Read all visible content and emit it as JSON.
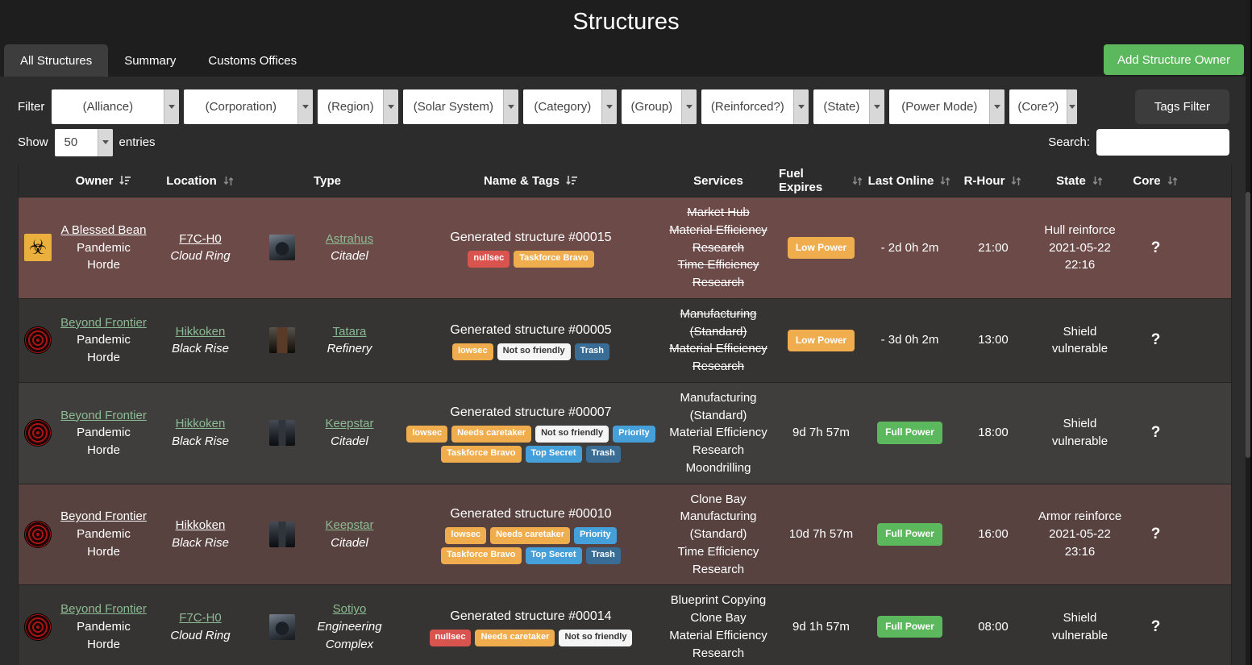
{
  "title": "Structures",
  "tabs": [
    {
      "label": "All Structures",
      "active": true
    },
    {
      "label": "Summary",
      "active": false
    },
    {
      "label": "Customs Offices",
      "active": false
    }
  ],
  "add_owner_button": "Add Structure Owner",
  "filters": {
    "label": "Filter",
    "selects": [
      {
        "id": "alliance",
        "value": "(Alliance)"
      },
      {
        "id": "corporation",
        "value": "(Corporation)"
      },
      {
        "id": "region",
        "value": "(Region)"
      },
      {
        "id": "solar-system",
        "value": "(Solar System)"
      },
      {
        "id": "category",
        "value": "(Category)"
      },
      {
        "id": "group",
        "value": "(Group)"
      },
      {
        "id": "reinforced",
        "value": "(Reinforced?)"
      },
      {
        "id": "state",
        "value": "(State)"
      },
      {
        "id": "power-mode",
        "value": "(Power Mode)"
      },
      {
        "id": "core",
        "value": "(Core?)"
      }
    ],
    "tags_filter_button": "Tags Filter"
  },
  "table_controls": {
    "show_label": "Show",
    "entries_value": "50",
    "entries_label": "entries",
    "search_label": "Search:",
    "search_value": ""
  },
  "table": {
    "columns": [
      {
        "label": "",
        "sort": null
      },
      {
        "label": "Owner",
        "sort": "amount"
      },
      {
        "label": "Location",
        "sort": "both"
      },
      {
        "label": "Type",
        "sort": null
      },
      {
        "label": "Name & Tags",
        "sort": "amount"
      },
      {
        "label": "Services",
        "sort": null
      },
      {
        "label": "Fuel Expires",
        "sort": "both"
      },
      {
        "label": "Last Online",
        "sort": "both"
      },
      {
        "label": "R-Hour",
        "sort": "both"
      },
      {
        "label": "State",
        "sort": "both"
      },
      {
        "label": "Core",
        "sort": "both"
      }
    ],
    "rows": [
      {
        "style": "reinforced-a",
        "owner_icon": "biohazard",
        "owner": {
          "name": "A Blessed Bean",
          "variant": "white",
          "sub": "Pandemic Horde"
        },
        "location": {
          "name": "F7C-H0",
          "variant": "white",
          "sub": "Cloud Ring"
        },
        "type": {
          "name": "Astrahus",
          "variant": "green",
          "sub": "Citadel",
          "thumb": "astrahus"
        },
        "structure_name": "Generated structure #00015",
        "tags": [
          {
            "label": "nullsec",
            "color": "red"
          },
          {
            "label": "Taskforce Bravo",
            "color": "orange"
          }
        ],
        "services": [
          {
            "name": "Market Hub",
            "offline": true
          },
          {
            "name": "Material Efficiency Research",
            "offline": true
          },
          {
            "name": "Time Efficiency Research",
            "offline": true
          }
        ],
        "fuel_expires": {
          "text": "",
          "badge": "Low Power",
          "badge_color": "orange"
        },
        "last_online": {
          "text": "- 2d 0h 2m",
          "badge": "",
          "badge_color": ""
        },
        "r_hour": "21:00",
        "state": "Hull reinforce 2021-05-22 22:16",
        "core": "?"
      },
      {
        "style": "base-a",
        "owner_icon": "beyond-frontier",
        "owner": {
          "name": "Beyond Frontier",
          "variant": "green",
          "sub": "Pandemic Horde"
        },
        "location": {
          "name": "Hikkoken",
          "variant": "green",
          "sub": "Black Rise"
        },
        "type": {
          "name": "Tatara",
          "variant": "green",
          "sub": "Refinery",
          "thumb": "tatara"
        },
        "structure_name": "Generated structure #00005",
        "tags": [
          {
            "label": "lowsec",
            "color": "orange"
          },
          {
            "label": "Not so friendly",
            "color": "light"
          },
          {
            "label": "Trash",
            "color": "darkblue"
          }
        ],
        "services": [
          {
            "name": "Manufacturing (Standard)",
            "offline": true
          },
          {
            "name": "Material Efficiency Research",
            "offline": true
          }
        ],
        "fuel_expires": {
          "text": "",
          "badge": "Low Power",
          "badge_color": "orange"
        },
        "last_online": {
          "text": "- 3d 0h 2m",
          "badge": "",
          "badge_color": ""
        },
        "r_hour": "13:00",
        "state": "Shield vulnerable",
        "core": "?"
      },
      {
        "style": "base-b",
        "owner_icon": "beyond-frontier",
        "owner": {
          "name": "Beyond Frontier",
          "variant": "green",
          "sub": "Pandemic Horde"
        },
        "location": {
          "name": "Hikkoken",
          "variant": "green",
          "sub": "Black Rise"
        },
        "type": {
          "name": "Keepstar",
          "variant": "green",
          "sub": "Citadel",
          "thumb": "keepstar"
        },
        "structure_name": "Generated structure #00007",
        "tags": [
          {
            "label": "lowsec",
            "color": "orange"
          },
          {
            "label": "Needs caretaker",
            "color": "orange"
          },
          {
            "label": "Not so friendly",
            "color": "light"
          },
          {
            "label": "Priority",
            "color": "blue"
          },
          {
            "label": "Taskforce Bravo",
            "color": "orange"
          },
          {
            "label": "Top Secret",
            "color": "blue"
          },
          {
            "label": "Trash",
            "color": "darkblue"
          }
        ],
        "services": [
          {
            "name": "Manufacturing (Standard)",
            "offline": false
          },
          {
            "name": "Material Efficiency Research",
            "offline": false
          },
          {
            "name": "Moondrilling",
            "offline": false
          }
        ],
        "fuel_expires": {
          "text": "9d 7h 57m",
          "badge": "",
          "badge_color": ""
        },
        "last_online": {
          "text": "",
          "badge": "Full Power",
          "badge_color": "green"
        },
        "r_hour": "18:00",
        "state": "Shield vulnerable",
        "core": "?"
      },
      {
        "style": "reinforced-b",
        "owner_icon": "beyond-frontier",
        "owner": {
          "name": "Beyond Frontier",
          "variant": "white",
          "sub": "Pandemic Horde"
        },
        "location": {
          "name": "Hikkoken",
          "variant": "white",
          "sub": "Black Rise"
        },
        "type": {
          "name": "Keepstar",
          "variant": "green",
          "sub": "Citadel",
          "thumb": "keepstar"
        },
        "structure_name": "Generated structure #00010",
        "tags": [
          {
            "label": "lowsec",
            "color": "orange"
          },
          {
            "label": "Needs caretaker",
            "color": "orange"
          },
          {
            "label": "Priority",
            "color": "blue"
          },
          {
            "label": "Taskforce Bravo",
            "color": "orange"
          },
          {
            "label": "Top Secret",
            "color": "blue"
          },
          {
            "label": "Trash",
            "color": "darkblue"
          }
        ],
        "services": [
          {
            "name": "Clone Bay",
            "offline": false
          },
          {
            "name": "Manufacturing (Standard)",
            "offline": false
          },
          {
            "name": "Time Efficiency Research",
            "offline": false
          }
        ],
        "fuel_expires": {
          "text": "10d 7h 57m",
          "badge": "",
          "badge_color": ""
        },
        "last_online": {
          "text": "",
          "badge": "Full Power",
          "badge_color": "green"
        },
        "r_hour": "16:00",
        "state": "Armor reinforce 2021-05-22 23:16",
        "core": "?"
      },
      {
        "style": "base-a",
        "owner_icon": "beyond-frontier",
        "owner": {
          "name": "Beyond Frontier",
          "variant": "green",
          "sub": "Pandemic Horde"
        },
        "location": {
          "name": "F7C-H0",
          "variant": "green",
          "sub": "Cloud Ring"
        },
        "type": {
          "name": "Sotiyo",
          "variant": "green",
          "sub": "Engineering Complex",
          "thumb": "sotiyo"
        },
        "structure_name": "Generated structure #00014",
        "tags": [
          {
            "label": "nullsec",
            "color": "red"
          },
          {
            "label": "Needs caretaker",
            "color": "orange"
          },
          {
            "label": "Not so friendly",
            "color": "light"
          }
        ],
        "services": [
          {
            "name": "Blueprint Copying",
            "offline": false
          },
          {
            "name": "Clone Bay",
            "offline": false
          },
          {
            "name": "Material Efficiency Research",
            "offline": false
          }
        ],
        "fuel_expires": {
          "text": "9d 1h 57m",
          "badge": "",
          "badge_color": ""
        },
        "last_online": {
          "text": "",
          "badge": "Full Power",
          "badge_color": "green"
        },
        "r_hour": "08:00",
        "state": "Shield vulnerable",
        "core": "?"
      }
    ]
  },
  "colors": {
    "accent_green": "#5cb85c",
    "badge_orange": "#f0ad4e",
    "badge_red": "#d9534f",
    "badge_blue": "#459fd9",
    "badge_darkblue": "#3a6d96",
    "badge_light": "#f5f5f5",
    "link_green": "#8cbb93",
    "reinforced_row": "#6b4a48",
    "panel_bg": "#2d2c2c"
  }
}
